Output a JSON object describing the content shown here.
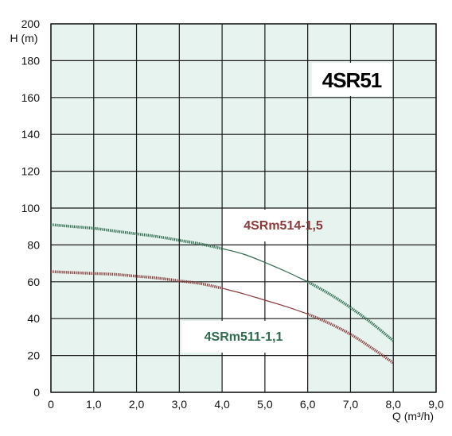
{
  "chart_data": {
    "type": "line",
    "title": "4SR51",
    "xlabel": "Q (m³/h)",
    "ylabel": "H (m)",
    "xlim": [
      0,
      9
    ],
    "ylim": [
      0,
      200
    ],
    "x_ticks": [
      "0",
      "1,0",
      "2,0",
      "3,0",
      "4,0",
      "5,0",
      "6,0",
      "7,0",
      "8,0",
      "9,0"
    ],
    "y_ticks": [
      "0",
      "20",
      "40",
      "60",
      "80",
      "100",
      "120",
      "140",
      "160",
      "180",
      "200"
    ],
    "grid": true,
    "series": [
      {
        "name": "4SRm514-1,5",
        "color": "#2d6b4c",
        "x": [
          0,
          0.5,
          1.0,
          1.5,
          2.0,
          2.5,
          3.0,
          3.5,
          4.0,
          4.5,
          5.0,
          5.5,
          6.0,
          6.5,
          7.0,
          7.5,
          8.0
        ],
        "y": [
          91,
          90,
          89,
          87.5,
          86,
          84.5,
          82.5,
          80.5,
          78,
          75,
          70.5,
          65.5,
          60,
          53.5,
          46,
          37.5,
          28
        ],
        "operating_range": [
          4.0,
          6.0
        ]
      },
      {
        "name": "4SRm511-1,1",
        "color": "#8b3a3a",
        "x": [
          0,
          0.5,
          1.0,
          1.5,
          2.0,
          2.5,
          3.0,
          3.5,
          4.0,
          4.5,
          5.0,
          5.5,
          6.0,
          6.5,
          7.0,
          7.5,
          8.0
        ],
        "y": [
          65.5,
          65,
          64.5,
          64,
          63,
          62,
          60.5,
          59,
          56.5,
          53.5,
          50,
          46.5,
          42.5,
          37.5,
          31.5,
          24,
          16
        ],
        "operating_range": [
          4.0,
          6.0
        ]
      }
    ],
    "colors": {
      "plot_background": "#e6f3ef",
      "operating_zone": "#ffffff",
      "grid": "#1a1a1a"
    }
  }
}
